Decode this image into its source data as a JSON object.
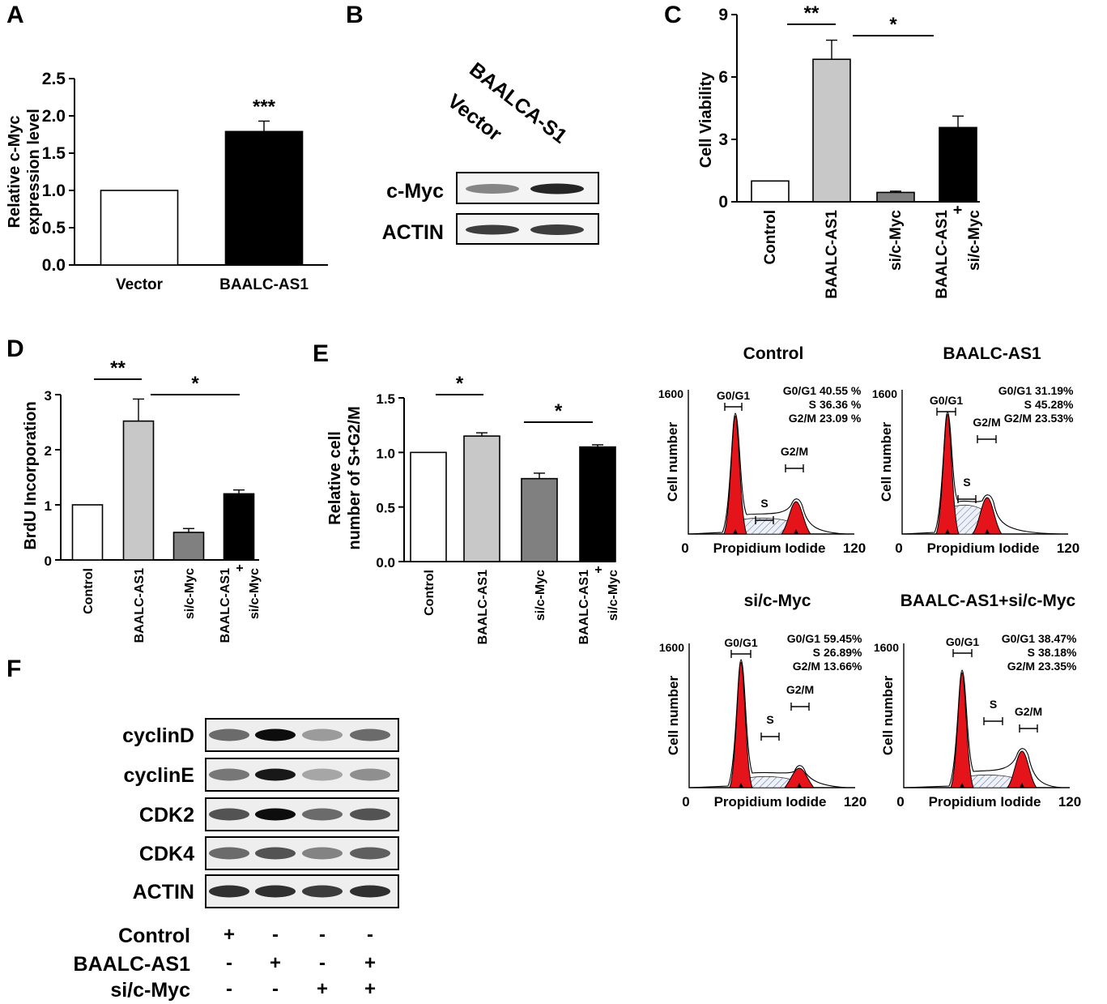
{
  "panels": {
    "A": {
      "letter": "A",
      "chart_data": {
        "type": "bar",
        "ylabel": "Relative c-Myc expression level",
        "ylim": [
          0,
          2.5
        ],
        "yticks": [
          "0.0",
          "0.5",
          "1.0",
          "1.5",
          "2.0",
          "2.5"
        ],
        "categories": [
          "Vector",
          "BAALC-AS1"
        ],
        "values": [
          1.0,
          1.79
        ],
        "errors": [
          0,
          0.14
        ],
        "colors": [
          "#ffffff",
          "#000000"
        ],
        "significance": [
          "",
          "***"
        ]
      }
    },
    "B": {
      "letter": "B",
      "lanes": [
        "Vector",
        "BAALCA-S1"
      ],
      "bands": [
        "c-Myc",
        "ACTIN"
      ]
    },
    "C": {
      "letter": "C",
      "chart_data": {
        "type": "bar",
        "ylabel": "Cell Viability",
        "ylim": [
          0,
          9
        ],
        "yticks": [
          "0",
          "3",
          "6",
          "9"
        ],
        "categories": [
          "Control",
          "BAALC-AS1",
          "si/c-Myc",
          "BAALC-AS1 + si/c-Myc"
        ],
        "category_lines": [
          [
            "Control"
          ],
          [
            "BAALC-AS1"
          ],
          [
            "si/c-Myc"
          ],
          [
            "BAALC-AS1",
            "+",
            "si/c-Myc"
          ]
        ],
        "values": [
          1.0,
          6.85,
          0.45,
          3.57
        ],
        "errors": [
          0,
          0.92,
          0.06,
          0.55
        ],
        "colors": [
          "#ffffff",
          "#c8c8c8",
          "#808080",
          "#000000"
        ],
        "brackets": [
          {
            "from": 0,
            "to": 1,
            "label": "**"
          },
          {
            "from": 1,
            "to": 3,
            "label": "*"
          }
        ]
      }
    },
    "D": {
      "letter": "D",
      "chart_data": {
        "type": "bar",
        "ylabel": "BrdU Incorporation",
        "ylim": [
          0,
          3
        ],
        "yticks": [
          "0",
          "1",
          "2",
          "3"
        ],
        "categories": [
          "Control",
          "BAALC-AS1",
          "si/c-Myc",
          "BAALC-AS1 + si/c-Myc"
        ],
        "category_lines": [
          [
            "Control"
          ],
          [
            "BAALC-AS1"
          ],
          [
            "si/c-Myc"
          ],
          [
            "BAALC-AS1",
            "+",
            "si/c-Myc"
          ]
        ],
        "values": [
          1.0,
          2.52,
          0.5,
          1.2
        ],
        "errors": [
          0,
          0.4,
          0.07,
          0.07
        ],
        "colors": [
          "#ffffff",
          "#c8c8c8",
          "#808080",
          "#000000"
        ],
        "brackets": [
          {
            "from": 0,
            "to": 1,
            "label": "**"
          },
          {
            "from": 1,
            "to": 3,
            "label": "*"
          }
        ]
      }
    },
    "E": {
      "letter": "E",
      "chart_data": {
        "type": "bar",
        "ylabel_lines": [
          "Relative cell",
          "number of S+G2/M"
        ],
        "ylim": [
          0,
          1.5
        ],
        "yticks": [
          "0.0",
          "0.5",
          "1.0",
          "1.5"
        ],
        "categories": [
          "Control",
          "BAALC-AS1",
          "si/c-Myc",
          "BAALC-AS1 + si/c-Myc"
        ],
        "category_lines": [
          [
            "Control"
          ],
          [
            "BAALC-AS1"
          ],
          [
            "si/c-Myc"
          ],
          [
            "BAALC-AS1",
            "+",
            "si/c-Myc"
          ]
        ],
        "values": [
          1.0,
          1.15,
          0.76,
          1.05
        ],
        "errors": [
          0,
          0.03,
          0.05,
          0.02
        ],
        "colors": [
          "#ffffff",
          "#c8c8c8",
          "#808080",
          "#000000"
        ],
        "brackets": [
          {
            "from": 0,
            "to": 1,
            "label": "*"
          },
          {
            "from": 2,
            "to": 3,
            "label": "*"
          }
        ]
      },
      "flow": {
        "yaxis_label": "Cell number",
        "xaxis_label": "Propidium Iodide",
        "x_min": "0",
        "x_max": "120",
        "y_max": "1600",
        "gate_labels": [
          "G0/G1",
          "S",
          "G2/M"
        ],
        "plots": [
          {
            "title": "Control",
            "stats": [
              [
                "G0/G1",
                "40.55 %"
              ],
              [
                "S",
                "36.36 %"
              ],
              [
                "G2/M",
                "23.09 %"
              ]
            ]
          },
          {
            "title": "BAALC-AS1",
            "stats": [
              [
                "G0/G1",
                "31.19%"
              ],
              [
                "S",
                "45.28%"
              ],
              [
                "G2/M",
                "23.53%"
              ]
            ]
          },
          {
            "title": "si/c-Myc",
            "stats": [
              [
                "G0/G1",
                "59.45%"
              ],
              [
                "S",
                "26.89%"
              ],
              [
                "G2/M",
                "13.66%"
              ]
            ]
          },
          {
            "title": "BAALC-AS1+si/c-Myc",
            "stats": [
              [
                "G0/G1",
                "38.47%"
              ],
              [
                "S",
                "38.18%"
              ],
              [
                "G2/M",
                "23.35%"
              ]
            ]
          }
        ]
      }
    },
    "F": {
      "letter": "F",
      "bands": [
        "cyclinD",
        "cyclinE",
        "CDK2",
        "CDK4",
        "ACTIN"
      ],
      "conditions": [
        {
          "label": "Control",
          "signs": [
            "+",
            "-",
            "-",
            "-"
          ]
        },
        {
          "label": "BAALC-AS1",
          "signs": [
            "-",
            "+",
            "-",
            "+"
          ]
        },
        {
          "label": "si/c-Myc",
          "signs": [
            "-",
            "-",
            "+",
            "+"
          ]
        }
      ]
    }
  }
}
